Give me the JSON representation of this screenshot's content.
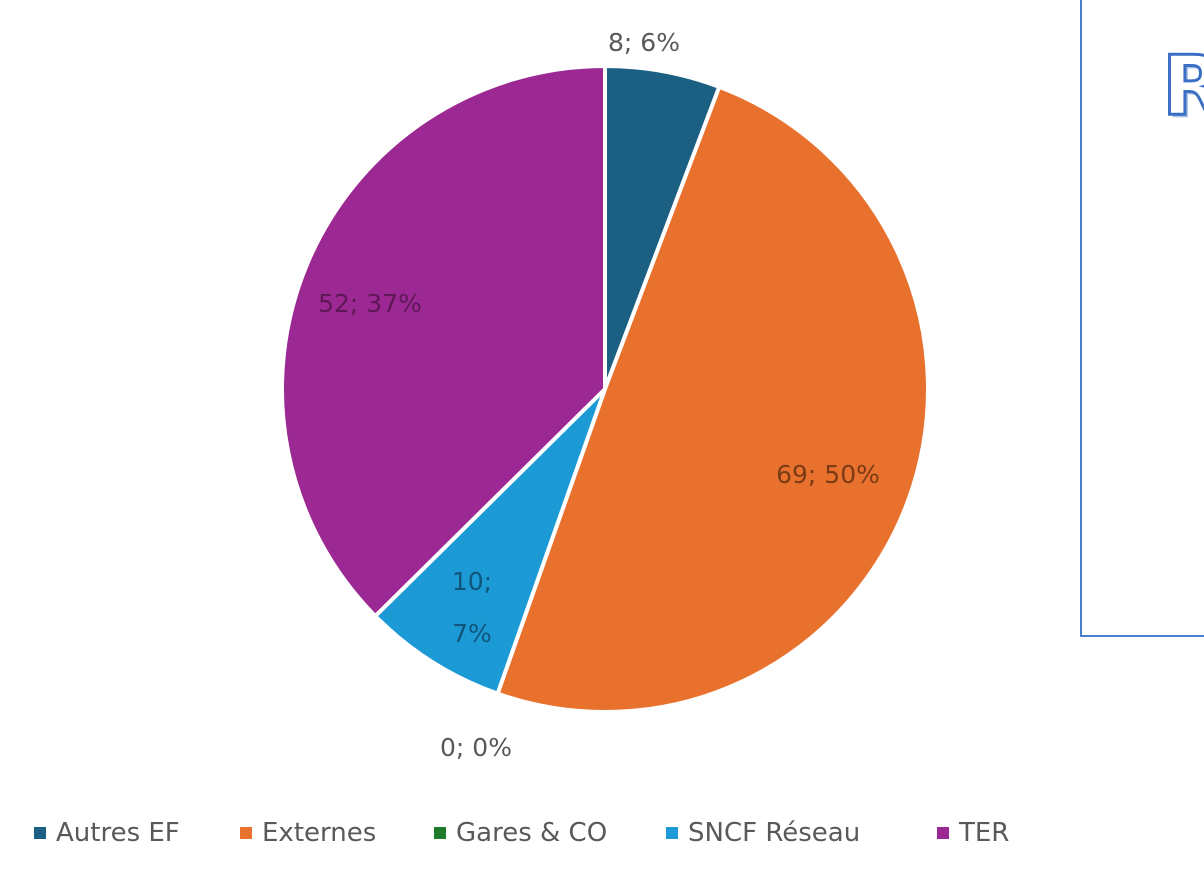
{
  "chart_data": {
    "type": "pie",
    "title": "",
    "slices": [
      {
        "name": "Autres EF",
        "value": 8,
        "percent": 6,
        "label": "8; 6%",
        "color": "#1b5f83",
        "label_color": "#595959"
      },
      {
        "name": "Externes",
        "value": 69,
        "percent": 50,
        "label": "69; 50%",
        "color": "#e8712d",
        "label_color": "#7a3b15"
      },
      {
        "name": "Gares & CO",
        "value": 0,
        "percent": 0,
        "label": "0; 0%",
        "color": "#1d7b2b",
        "label_color": "#595959"
      },
      {
        "name": "SNCF Réseau",
        "value": 10,
        "percent": 7,
        "label_lines": [
          "10;",
          "7%"
        ],
        "color": "#1c9ad6",
        "label_color": "#10557a"
      },
      {
        "name": "TER",
        "value": 52,
        "percent": 37,
        "label": "52; 37%",
        "color": "#9c2893",
        "label_color": "#5e1858"
      }
    ],
    "legend_position": "bottom"
  },
  "side_panel": {
    "title_fragment": "R",
    "border_color": "#4a7fd0"
  }
}
